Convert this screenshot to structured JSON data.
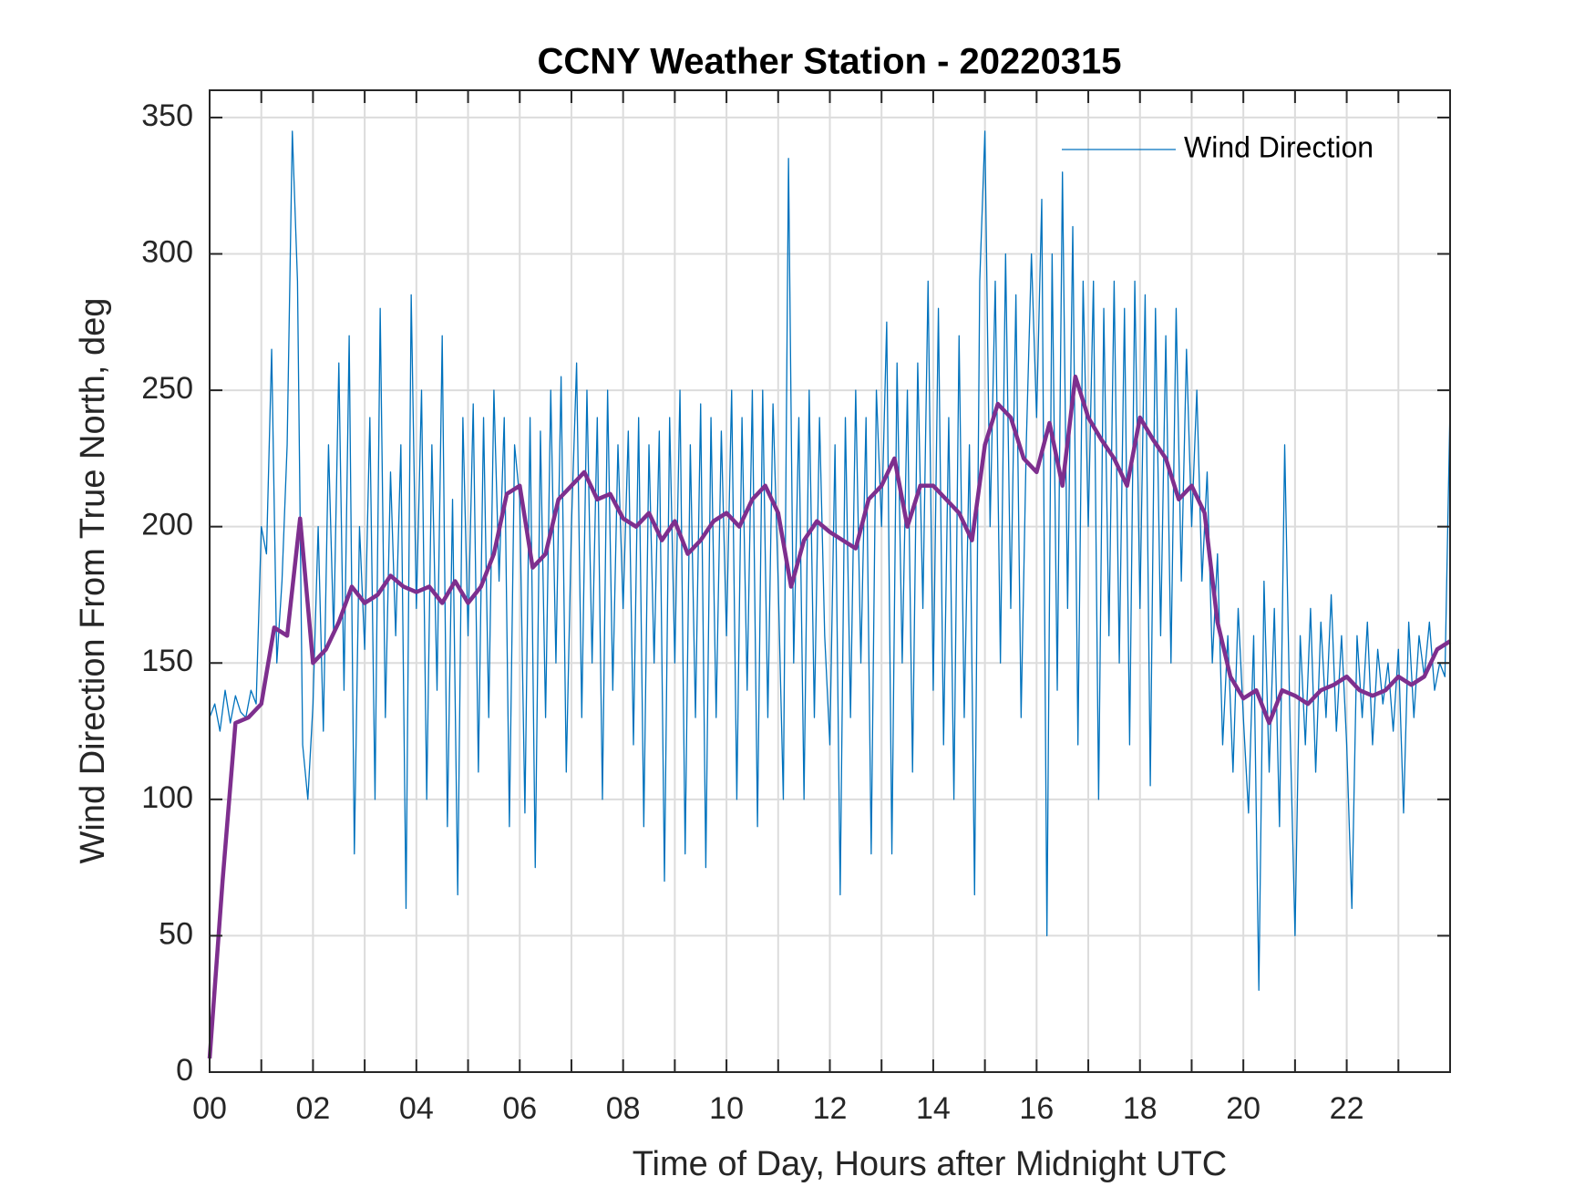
{
  "chart_data": {
    "type": "line",
    "title": "CCNY Weather Station - 20220315",
    "x_label": "Time of Day, Hours after Midnight UTC",
    "y_label": "Wind Direction From True North, deg",
    "xlim": [
      0,
      24
    ],
    "ylim": [
      0,
      360
    ],
    "xticks": [
      {
        "value": 0,
        "label": "00"
      },
      {
        "value": 1,
        "label": null
      },
      {
        "value": 2,
        "label": "02"
      },
      {
        "value": 3,
        "label": null
      },
      {
        "value": 4,
        "label": "04"
      },
      {
        "value": 5,
        "label": null
      },
      {
        "value": 6,
        "label": "06"
      },
      {
        "value": 7,
        "label": null
      },
      {
        "value": 8,
        "label": "08"
      },
      {
        "value": 9,
        "label": null
      },
      {
        "value": 10,
        "label": "10"
      },
      {
        "value": 11,
        "label": null
      },
      {
        "value": 12,
        "label": "12"
      },
      {
        "value": 13,
        "label": null
      },
      {
        "value": 14,
        "label": "14"
      },
      {
        "value": 15,
        "label": null
      },
      {
        "value": 16,
        "label": "16"
      },
      {
        "value": 17,
        "label": null
      },
      {
        "value": 18,
        "label": "18"
      },
      {
        "value": 19,
        "label": null
      },
      {
        "value": 20,
        "label": "20"
      },
      {
        "value": 21,
        "label": null
      },
      {
        "value": 22,
        "label": "22"
      },
      {
        "value": 23,
        "label": null
      }
    ],
    "yticks": [
      0,
      50,
      100,
      150,
      200,
      250,
      300,
      350
    ],
    "grid": true,
    "legend": "upper right",
    "series": [
      {
        "name": "Wind Direction",
        "color": "#0072bd",
        "width": 1.3,
        "x": [
          0,
          0.1,
          0.2,
          0.3,
          0.4,
          0.5,
          0.6,
          0.7,
          0.8,
          0.9,
          1,
          1.1,
          1.2,
          1.3,
          1.4,
          1.5,
          1.6,
          1.7,
          1.8,
          1.9,
          2,
          2.1,
          2.2,
          2.3,
          2.4,
          2.5,
          2.6,
          2.7,
          2.8,
          2.9,
          3,
          3.1,
          3.2,
          3.3,
          3.4,
          3.5,
          3.6,
          3.7,
          3.8,
          3.9,
          4,
          4.1,
          4.2,
          4.3,
          4.4,
          4.5,
          4.6,
          4.7,
          4.8,
          4.9,
          5,
          5.1,
          5.2,
          5.3,
          5.4,
          5.5,
          5.6,
          5.7,
          5.8,
          5.9,
          6,
          6.1,
          6.2,
          6.3,
          6.4,
          6.5,
          6.6,
          6.7,
          6.8,
          6.9,
          7,
          7.1,
          7.2,
          7.3,
          7.4,
          7.5,
          7.6,
          7.7,
          7.8,
          7.9,
          8,
          8.1,
          8.2,
          8.3,
          8.4,
          8.5,
          8.6,
          8.7,
          8.8,
          8.9,
          9,
          9.1,
          9.2,
          9.3,
          9.4,
          9.5,
          9.6,
          9.7,
          9.8,
          9.9,
          10,
          10.1,
          10.2,
          10.3,
          10.4,
          10.5,
          10.6,
          10.7,
          10.8,
          10.9,
          11,
          11.1,
          11.2,
          11.3,
          11.4,
          11.5,
          11.6,
          11.7,
          11.8,
          11.9,
          12,
          12.1,
          12.2,
          12.3,
          12.4,
          12.5,
          12.6,
          12.7,
          12.8,
          12.9,
          13,
          13.1,
          13.2,
          13.3,
          13.4,
          13.5,
          13.6,
          13.7,
          13.8,
          13.9,
          14,
          14.1,
          14.2,
          14.3,
          14.4,
          14.5,
          14.6,
          14.7,
          14.8,
          14.9,
          15,
          15.1,
          15.2,
          15.3,
          15.4,
          15.5,
          15.6,
          15.7,
          15.8,
          15.9,
          16,
          16.1,
          16.2,
          16.3,
          16.4,
          16.5,
          16.6,
          16.7,
          16.8,
          16.9,
          17,
          17.1,
          17.2,
          17.3,
          17.4,
          17.5,
          17.6,
          17.7,
          17.8,
          17.9,
          18,
          18.1,
          18.2,
          18.3,
          18.4,
          18.5,
          18.6,
          18.7,
          18.8,
          18.9,
          19,
          19.1,
          19.2,
          19.3,
          19.4,
          19.5,
          19.6,
          19.7,
          19.8,
          19.9,
          20,
          20.1,
          20.2,
          20.3,
          20.4,
          20.5,
          20.6,
          20.7,
          20.8,
          20.9,
          21,
          21.1,
          21.2,
          21.3,
          21.4,
          21.5,
          21.6,
          21.7,
          21.8,
          21.9,
          22,
          22.1,
          22.2,
          22.3,
          22.4,
          22.5,
          22.6,
          22.7,
          22.8,
          22.9,
          23,
          23.1,
          23.2,
          23.3,
          23.4,
          23.5,
          23.6,
          23.7,
          23.8,
          23.9,
          24
        ],
        "values": [
          130,
          135,
          125,
          140,
          128,
          138,
          132,
          130,
          140,
          135,
          200,
          190,
          265,
          150,
          180,
          230,
          345,
          290,
          120,
          100,
          135,
          200,
          125,
          230,
          160,
          260,
          140,
          270,
          80,
          200,
          155,
          240,
          100,
          280,
          130,
          220,
          160,
          230,
          60,
          285,
          170,
          250,
          100,
          230,
          140,
          270,
          90,
          210,
          65,
          240,
          160,
          245,
          110,
          240,
          130,
          250,
          180,
          240,
          90,
          230,
          210,
          95,
          240,
          75,
          235,
          130,
          250,
          150,
          255,
          110,
          200,
          260,
          130,
          250,
          150,
          240,
          100,
          250,
          140,
          230,
          170,
          235,
          120,
          240,
          90,
          230,
          150,
          235,
          70,
          240,
          150,
          250,
          80,
          230,
          130,
          245,
          75,
          240,
          130,
          235,
          160,
          250,
          100,
          240,
          140,
          250,
          90,
          250,
          130,
          245,
          180,
          100,
          335,
          150,
          240,
          100,
          250,
          130,
          240,
          160,
          120,
          230,
          65,
          240,
          130,
          250,
          150,
          240,
          80,
          250,
          200,
          275,
          80,
          260,
          150,
          250,
          110,
          260,
          170,
          290,
          140,
          280,
          120,
          240,
          100,
          270,
          130,
          230,
          65,
          290,
          345,
          200,
          290,
          150,
          300,
          170,
          285,
          130,
          230,
          300,
          240,
          320,
          50,
          300,
          140,
          330,
          170,
          310,
          120,
          290,
          200,
          290,
          100,
          280,
          160,
          290,
          150,
          280,
          120,
          290,
          170,
          285,
          105,
          280,
          160,
          270,
          150,
          280,
          180,
          265,
          200,
          250,
          180,
          220,
          150,
          190,
          120,
          160,
          110,
          170,
          130,
          95,
          160,
          30,
          180,
          110,
          170,
          90,
          230,
          130,
          50,
          160,
          120,
          170,
          110,
          165,
          130,
          175,
          125,
          160,
          120,
          60,
          160,
          130,
          165,
          120,
          155,
          135,
          150,
          125,
          155,
          95,
          165,
          130,
          160,
          145,
          165,
          140,
          150,
          145,
          245
        ]
      },
      {
        "color": "#7e2f8e",
        "width": 4.5,
        "x": [
          0,
          0.25,
          0.5,
          0.75,
          1,
          1.25,
          1.5,
          1.75,
          2,
          2.25,
          2.5,
          2.75,
          3,
          3.25,
          3.5,
          3.75,
          4,
          4.25,
          4.5,
          4.75,
          5,
          5.25,
          5.5,
          5.75,
          6,
          6.25,
          6.5,
          6.75,
          7,
          7.25,
          7.5,
          7.75,
          8,
          8.25,
          8.5,
          8.75,
          9,
          9.25,
          9.5,
          9.75,
          10,
          10.25,
          10.5,
          10.75,
          11,
          11.25,
          11.5,
          11.75,
          12,
          12.25,
          12.5,
          12.75,
          13,
          13.25,
          13.5,
          13.75,
          14,
          14.25,
          14.5,
          14.75,
          15,
          15.25,
          15.5,
          15.75,
          16,
          16.25,
          16.5,
          16.75,
          17,
          17.25,
          17.5,
          17.75,
          18,
          18.25,
          18.5,
          18.75,
          19,
          19.25,
          19.5,
          19.75,
          20,
          20.25,
          20.5,
          20.75,
          21,
          21.25,
          21.5,
          21.75,
          22,
          22.25,
          22.5,
          22.75,
          23,
          23.25,
          23.5,
          23.75,
          24
        ],
        "values": [
          5,
          70,
          128,
          130,
          135,
          163,
          160,
          203,
          150,
          155,
          165,
          178,
          172,
          175,
          182,
          178,
          176,
          178,
          172,
          180,
          172,
          178,
          190,
          212,
          215,
          185,
          190,
          210,
          215,
          220,
          210,
          212,
          203,
          200,
          205,
          195,
          202,
          190,
          195,
          202,
          205,
          200,
          210,
          215,
          205,
          178,
          195,
          202,
          198,
          195,
          192,
          210,
          215,
          225,
          200,
          215,
          215,
          210,
          205,
          195,
          230,
          245,
          240,
          225,
          220,
          238,
          215,
          255,
          240,
          232,
          225,
          215,
          240,
          232,
          225,
          210,
          215,
          205,
          165,
          145,
          137,
          140,
          128,
          140,
          138,
          135,
          140,
          142,
          145,
          140,
          138,
          140,
          145,
          142,
          145,
          155,
          158
        ]
      }
    ]
  }
}
